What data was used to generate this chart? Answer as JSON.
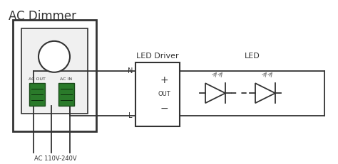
{
  "bg_color": "#ffffff",
  "title_ac_dimmer": "AC Dimmer",
  "title_led_driver": "LED Driver",
  "title_led": "LED",
  "label_ac_out": "AC OUT",
  "label_ac_in": "AC IN",
  "label_n": "N",
  "label_l": "L",
  "label_plus": "+",
  "label_out": "OUT",
  "label_minus": "−",
  "label_voltage": "AC 110V-240V",
  "line_color": "#333333",
  "font_color": "#333333",
  "terminal_color": "#2a7a2a",
  "terminal_edge_color": "#1a4a1a"
}
